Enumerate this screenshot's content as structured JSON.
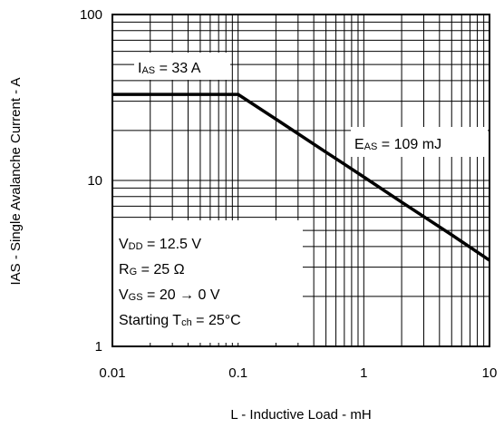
{
  "chart_data": {
    "type": "line",
    "title": "",
    "xlabel": "L - Inductive Load - mH",
    "ylabel": "IAS - Single Avalanche Current - A",
    "x_scale": "log",
    "y_scale": "log",
    "xlim": [
      0.01,
      10
    ],
    "ylim": [
      1,
      100
    ],
    "grid": true,
    "x_ticks": [
      "0.01",
      "0.1",
      "1",
      "10"
    ],
    "y_ticks": [
      "1",
      "10",
      "100"
    ],
    "series": [
      {
        "x": [
          0.01,
          0.1,
          0.2,
          0.5,
          1,
          2,
          5,
          10
        ],
        "y": [
          33,
          33,
          23.4,
          14.8,
          10.5,
          7.4,
          4.7,
          3.3
        ]
      }
    ],
    "annotations": {
      "ias": {
        "main": "I",
        "sub": "AS",
        "rest": " = 33 A"
      },
      "eas": {
        "main": "E",
        "sub": "AS",
        "rest": " = 109 mJ"
      },
      "conditions": [
        {
          "main": "V",
          "sub": "DD",
          "rest": " = 12.5 V"
        },
        {
          "main": "R",
          "sub": "G",
          "rest": " = 25 Ω"
        },
        {
          "main": "V",
          "sub": "GS",
          "rest": " = 20 → 0 V"
        },
        {
          "main": "Starting T",
          "sub": "ch",
          "rest": " = 25°C"
        }
      ]
    }
  }
}
